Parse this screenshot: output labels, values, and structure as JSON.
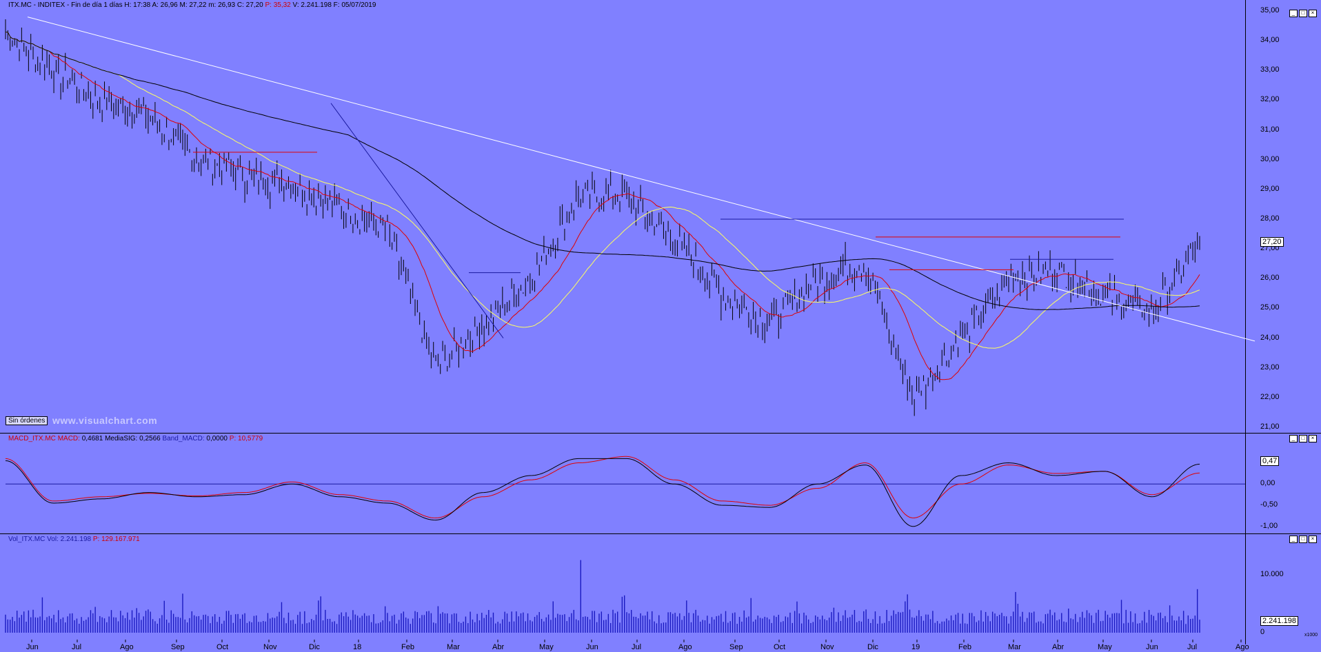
{
  "price_panel": {
    "ticker": "ITX.MC - INDITEX - Fin de día 1 días",
    "stats": [
      {
        "label": "H:",
        "value": "17:38"
      },
      {
        "label": "A:",
        "value": "26,96"
      },
      {
        "label": "M:",
        "value": "27,22"
      },
      {
        "label": "m:",
        "value": "26,93"
      },
      {
        "label": "C:",
        "value": "27,20"
      },
      {
        "label": "P:",
        "value": "35,32"
      },
      {
        "label": "V:",
        "value": "2.241.198"
      },
      {
        "label": "F:",
        "value": "05/07/2019"
      }
    ],
    "last_price_label": "27,20",
    "orders_button": "Sin órdenes",
    "watermark": "www.visualchart.com",
    "axis_ticks": [
      "35,00",
      "34,00",
      "33,00",
      "32,00",
      "31,00",
      "30,00",
      "29,00",
      "28,00",
      "27,00",
      "26,00",
      "25,00",
      "24,00",
      "23,00",
      "22,00",
      "21,00"
    ]
  },
  "macd_panel": {
    "title": "MACD_ITX.MC",
    "stats": [
      {
        "label": "MACD:",
        "value": "0,4681"
      },
      {
        "label": "MediaSIG:",
        "value": "0,2566"
      },
      {
        "label": "Band_MACD:",
        "value": "0,0000"
      },
      {
        "label": "P:",
        "value": "10,5779"
      }
    ],
    "last_label": "0,47",
    "axis_ticks": [
      "0,00",
      "-0,50",
      "-1,00"
    ]
  },
  "volume_panel": {
    "title": "Vol_ITX.MC",
    "stats": [
      {
        "label": "Vol:",
        "value": "2.241.198"
      },
      {
        "label": "P:",
        "value": "129.167.971"
      }
    ],
    "last_label": "2.241.198",
    "axis_ticks": [
      "10.000",
      "0"
    ],
    "unit": "x1000"
  },
  "months": [
    "Jun",
    "Jul",
    "Ago",
    "Sep",
    "Oct",
    "Nov",
    "Dic",
    "18",
    "Feb",
    "Mar",
    "Abr",
    "May",
    "Jun",
    "Jul",
    "Ago",
    "Sep",
    "Oct",
    "Nov",
    "Dic",
    "19",
    "Feb",
    "Mar",
    "Abr",
    "May",
    "Jun",
    "Jul",
    "Ago"
  ],
  "colors": {
    "background": "#8080ff",
    "candles": "#000000",
    "ma_fast": "#e00000",
    "ma_mid": "#ffff60",
    "ma_slow": "#000000",
    "trendline": "#ffffff",
    "macd_line": "#000000",
    "signal_line": "#e00000",
    "volume_bars": "#1a1ac0"
  },
  "chart_data": [
    {
      "type": "line",
      "panel": "price",
      "title": "ITX.MC - INDITEX",
      "ylim": [
        21,
        35
      ],
      "x": [
        "Jun",
        "Jul",
        "Ago",
        "Sep",
        "Oct",
        "Nov",
        "Dic",
        "18",
        "Feb",
        "Mar",
        "Abr",
        "May",
        "Jun",
        "Jul",
        "Ago",
        "Sep",
        "Oct",
        "Nov",
        "Dic",
        "19",
        "Feb",
        "Mar",
        "Abr",
        "May",
        "Jun",
        "Jul"
      ],
      "series": [
        {
          "values": [
            34.3,
            33.0,
            32.0,
            31.5,
            30.0,
            29.5,
            29.2,
            28.4,
            27.6,
            23.0,
            24.5,
            26.0,
            28.8,
            28.8,
            27.3,
            25.5,
            24.5,
            26.0,
            26.5,
            22.0,
            24.0,
            26.0,
            26.3,
            25.5,
            24.8,
            27.2
          ]
        }
      ]
    },
    {
      "type": "line",
      "panel": "macd",
      "title": "MACD_ITX.MC",
      "ylim": [
        -1.0,
        0.8
      ],
      "series": [
        {
          "name": "MACD",
          "values": [
            0.55,
            -0.45,
            -0.35,
            -0.2,
            -0.3,
            -0.25,
            0.0,
            -0.3,
            -0.45,
            -0.85,
            -0.2,
            0.2,
            0.6,
            0.6,
            0.0,
            -0.5,
            -0.55,
            0.0,
            0.45,
            -1.0,
            0.2,
            0.5,
            0.2,
            0.3,
            -0.3,
            0.47
          ]
        },
        {
          "name": "MediaSIG",
          "values": [
            0.6,
            -0.4,
            -0.3,
            -0.22,
            -0.28,
            -0.2,
            0.05,
            -0.25,
            -0.4,
            -0.8,
            -0.3,
            0.1,
            0.5,
            0.65,
            0.1,
            -0.4,
            -0.5,
            -0.1,
            0.5,
            -0.8,
            0.0,
            0.45,
            0.25,
            0.3,
            -0.25,
            0.26
          ]
        }
      ]
    },
    {
      "type": "bar",
      "panel": "volume",
      "title": "Vol_ITX.MC",
      "ylim": [
        0,
        14000
      ],
      "values": [
        2241.198
      ]
    }
  ]
}
